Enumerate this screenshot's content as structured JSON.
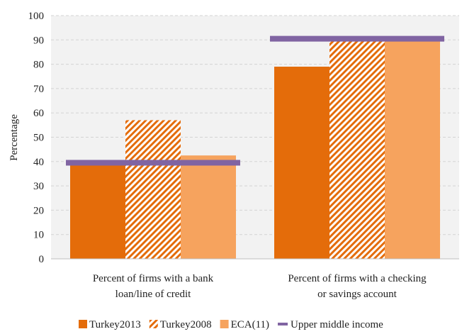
{
  "chart_data": {
    "type": "bar",
    "title": "",
    "xlabel": "",
    "ylabel": "Percentage",
    "ylim": [
      0,
      100
    ],
    "yticks": [
      0,
      10,
      20,
      30,
      40,
      50,
      60,
      70,
      80,
      90,
      100
    ],
    "grid": true,
    "legend_position": "bottom",
    "categories": [
      [
        "Percent of firms with a bank",
        "loan/line of credit"
      ],
      [
        "Percent of firms with a checking",
        "or savings account"
      ]
    ],
    "series": [
      {
        "name": "Turkey2013",
        "type": "bar",
        "pattern": "solid",
        "color": "#e46c0a",
        "values": [
          38.5,
          79
        ]
      },
      {
        "name": "Turkey2008",
        "type": "bar",
        "pattern": "hatched",
        "color": "#e46c0a",
        "values": [
          57,
          90
        ]
      },
      {
        "name": "ECA(11)",
        "type": "bar",
        "pattern": "solid",
        "color": "#f6a35e",
        "values": [
          42.5,
          91.5
        ]
      },
      {
        "name": "Upper middle income",
        "type": "line-marker",
        "color": "#8064a2",
        "values": [
          39.5,
          90.5
        ]
      }
    ]
  }
}
